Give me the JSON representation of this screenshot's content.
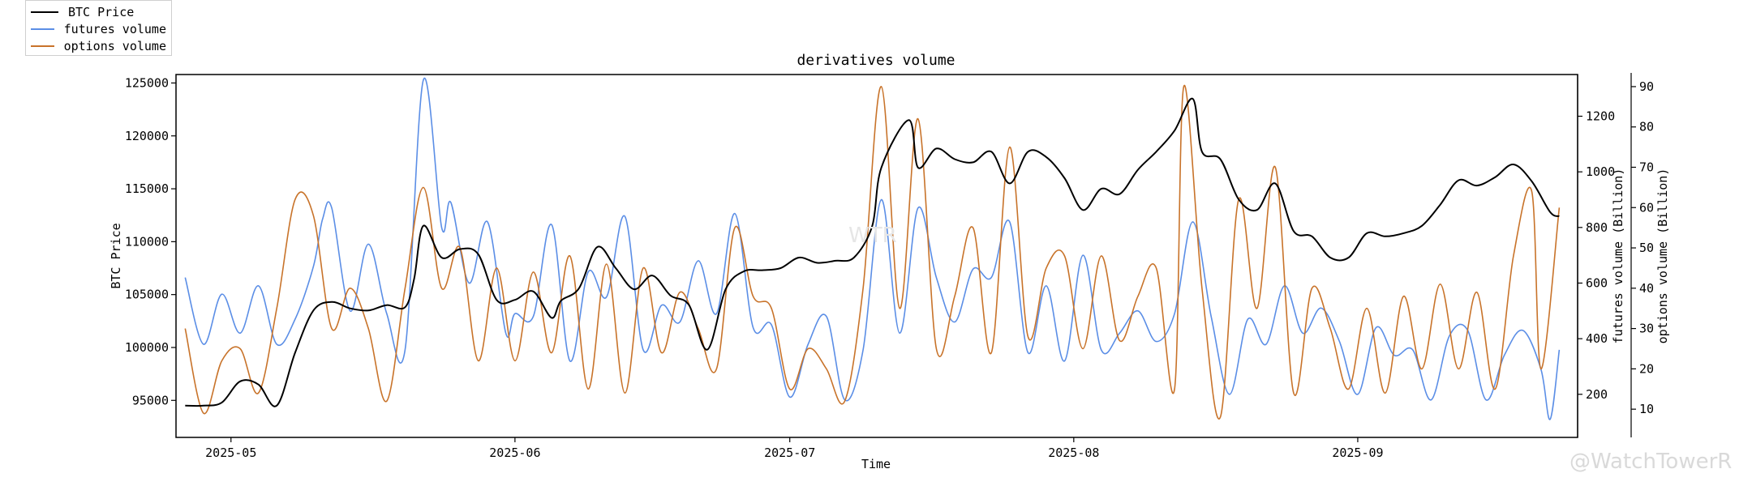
{
  "colors": {
    "btc": "#000000",
    "futures": "#5b8ee6",
    "options": "#c8732a"
  },
  "legend": {
    "items": [
      {
        "label": "BTC Price",
        "color": "#000000"
      },
      {
        "label": "futures volume",
        "color": "#5b8ee6"
      },
      {
        "label": "options volume",
        "color": "#c8732a"
      }
    ]
  },
  "watermark": {
    "text": "@WatchTowerR",
    "center_text": "WTR"
  },
  "chart_data": {
    "type": "line",
    "title": "derivatives volume",
    "xlabel": "Time",
    "ylabel_left": "BTC Price",
    "ylabel_right1": "futures volume (Billion)",
    "ylabel_right2": "options volume (Billion)",
    "x_range": [
      "2025-04-25",
      "2025-09-25"
    ],
    "ylim_left": [
      91500,
      125800
    ],
    "ylim_futures": [
      45,
      1350
    ],
    "ylim_options": [
      3,
      93
    ],
    "x_ticks": [
      "2025-05",
      "2025-06",
      "2025-07",
      "2025-08",
      "2025-09"
    ],
    "y_ticks_left": [
      "95000",
      "100000",
      "105000",
      "110000",
      "115000",
      "120000",
      "125000"
    ],
    "y_ticks_futures": [
      "200",
      "400",
      "600",
      "800",
      "1000",
      "1200"
    ],
    "y_ticks_options": [
      "10",
      "20",
      "30",
      "40",
      "50",
      "60",
      "70",
      "80",
      "90"
    ],
    "series": [
      {
        "name": "BTC Price",
        "axis": "left",
        "points": [
          [
            "2025-04-26",
            94500
          ],
          [
            "2025-04-28",
            94500
          ],
          [
            "2025-04-30",
            94800
          ],
          [
            "2025-05-02",
            96800
          ],
          [
            "2025-05-04",
            96500
          ],
          [
            "2025-05-06",
            94500
          ],
          [
            "2025-05-08",
            99500
          ],
          [
            "2025-05-10",
            103500
          ],
          [
            "2025-05-12",
            104300
          ],
          [
            "2025-05-14",
            103700
          ],
          [
            "2025-05-16",
            103500
          ],
          [
            "2025-05-18",
            104000
          ],
          [
            "2025-05-20",
            103800
          ],
          [
            "2025-05-21",
            106500
          ],
          [
            "2025-05-22",
            111500
          ],
          [
            "2025-05-24",
            108500
          ],
          [
            "2025-05-26",
            109300
          ],
          [
            "2025-05-28",
            108800
          ],
          [
            "2025-05-30",
            104500
          ],
          [
            "2025-06-01",
            104500
          ],
          [
            "2025-06-03",
            105300
          ],
          [
            "2025-06-05",
            102800
          ],
          [
            "2025-06-06",
            104400
          ],
          [
            "2025-06-08",
            105600
          ],
          [
            "2025-06-10",
            109500
          ],
          [
            "2025-06-12",
            107500
          ],
          [
            "2025-06-14",
            105500
          ],
          [
            "2025-06-16",
            106800
          ],
          [
            "2025-06-18",
            104900
          ],
          [
            "2025-06-20",
            104000
          ],
          [
            "2025-06-22",
            99800
          ],
          [
            "2025-06-24",
            105500
          ],
          [
            "2025-06-26",
            107200
          ],
          [
            "2025-06-28",
            107300
          ],
          [
            "2025-06-30",
            107500
          ],
          [
            "2025-07-02",
            108500
          ],
          [
            "2025-07-04",
            108000
          ],
          [
            "2025-07-06",
            108200
          ],
          [
            "2025-07-08",
            108500
          ],
          [
            "2025-07-10",
            111500
          ],
          [
            "2025-07-11",
            117000
          ],
          [
            "2025-07-14",
            121500
          ],
          [
            "2025-07-15",
            117000
          ],
          [
            "2025-07-17",
            118800
          ],
          [
            "2025-07-19",
            117800
          ],
          [
            "2025-07-21",
            117500
          ],
          [
            "2025-07-23",
            118500
          ],
          [
            "2025-07-25",
            115500
          ],
          [
            "2025-07-27",
            118500
          ],
          [
            "2025-07-29",
            118000
          ],
          [
            "2025-07-31",
            116000
          ],
          [
            "2025-08-02",
            113000
          ],
          [
            "2025-08-04",
            115000
          ],
          [
            "2025-08-06",
            114500
          ],
          [
            "2025-08-08",
            116800
          ],
          [
            "2025-08-10",
            118500
          ],
          [
            "2025-08-12",
            120500
          ],
          [
            "2025-08-14",
            123500
          ],
          [
            "2025-08-15",
            118500
          ],
          [
            "2025-08-17",
            117800
          ],
          [
            "2025-08-19",
            114000
          ],
          [
            "2025-08-21",
            113000
          ],
          [
            "2025-08-23",
            115500
          ],
          [
            "2025-08-25",
            111000
          ],
          [
            "2025-08-27",
            110500
          ],
          [
            "2025-08-29",
            108500
          ],
          [
            "2025-08-31",
            108500
          ],
          [
            "2025-09-02",
            110800
          ],
          [
            "2025-09-04",
            110500
          ],
          [
            "2025-09-06",
            110800
          ],
          [
            "2025-09-08",
            111500
          ],
          [
            "2025-09-10",
            113500
          ],
          [
            "2025-09-12",
            115800
          ],
          [
            "2025-09-14",
            115300
          ],
          [
            "2025-09-16",
            116100
          ],
          [
            "2025-09-18",
            117300
          ],
          [
            "2025-09-20",
            115700
          ],
          [
            "2025-09-22",
            112800
          ],
          [
            "2025-09-23",
            112400
          ]
        ]
      },
      {
        "name": "futures volume",
        "axis": "right1",
        "points": [
          [
            "2025-04-26",
            620
          ],
          [
            "2025-04-28",
            380
          ],
          [
            "2025-04-30",
            560
          ],
          [
            "2025-05-02",
            420
          ],
          [
            "2025-05-04",
            590
          ],
          [
            "2025-05-06",
            380
          ],
          [
            "2025-05-08",
            470
          ],
          [
            "2025-05-10",
            660
          ],
          [
            "2025-05-11",
            830
          ],
          [
            "2025-05-12",
            870
          ],
          [
            "2025-05-14",
            500
          ],
          [
            "2025-05-16",
            740
          ],
          [
            "2025-05-18",
            490
          ],
          [
            "2025-05-20",
            360
          ],
          [
            "2025-05-22",
            1330
          ],
          [
            "2025-05-24",
            800
          ],
          [
            "2025-05-25",
            890
          ],
          [
            "2025-05-27",
            600
          ],
          [
            "2025-05-29",
            820
          ],
          [
            "2025-05-31",
            420
          ],
          [
            "2025-06-01",
            490
          ],
          [
            "2025-06-03",
            480
          ],
          [
            "2025-06-05",
            810
          ],
          [
            "2025-06-07",
            320
          ],
          [
            "2025-06-09",
            640
          ],
          [
            "2025-06-11",
            550
          ],
          [
            "2025-06-13",
            840
          ],
          [
            "2025-06-15",
            360
          ],
          [
            "2025-06-17",
            520
          ],
          [
            "2025-06-19",
            460
          ],
          [
            "2025-06-21",
            680
          ],
          [
            "2025-06-23",
            490
          ],
          [
            "2025-06-25",
            850
          ],
          [
            "2025-06-27",
            440
          ],
          [
            "2025-06-29",
            450
          ],
          [
            "2025-07-01",
            190
          ],
          [
            "2025-07-03",
            380
          ],
          [
            "2025-07-05",
            480
          ],
          [
            "2025-07-07",
            180
          ],
          [
            "2025-07-09",
            360
          ],
          [
            "2025-07-11",
            900
          ],
          [
            "2025-07-13",
            420
          ],
          [
            "2025-07-15",
            870
          ],
          [
            "2025-07-17",
            620
          ],
          [
            "2025-07-19",
            460
          ],
          [
            "2025-07-21",
            650
          ],
          [
            "2025-07-23",
            620
          ],
          [
            "2025-07-25",
            820
          ],
          [
            "2025-07-27",
            350
          ],
          [
            "2025-07-29",
            590
          ],
          [
            "2025-07-31",
            320
          ],
          [
            "2025-08-02",
            700
          ],
          [
            "2025-08-04",
            360
          ],
          [
            "2025-08-06",
            420
          ],
          [
            "2025-08-08",
            500
          ],
          [
            "2025-08-10",
            390
          ],
          [
            "2025-08-12",
            490
          ],
          [
            "2025-08-14",
            820
          ],
          [
            "2025-08-16",
            480
          ],
          [
            "2025-08-18",
            200
          ],
          [
            "2025-08-20",
            470
          ],
          [
            "2025-08-22",
            380
          ],
          [
            "2025-08-24",
            590
          ],
          [
            "2025-08-26",
            420
          ],
          [
            "2025-08-28",
            510
          ],
          [
            "2025-08-30",
            390
          ],
          [
            "2025-09-01",
            200
          ],
          [
            "2025-09-03",
            440
          ],
          [
            "2025-09-05",
            340
          ],
          [
            "2025-09-07",
            360
          ],
          [
            "2025-09-09",
            180
          ],
          [
            "2025-09-11",
            410
          ],
          [
            "2025-09-13",
            430
          ],
          [
            "2025-09-15",
            180
          ],
          [
            "2025-09-17",
            340
          ],
          [
            "2025-09-19",
            430
          ],
          [
            "2025-09-21",
            290
          ],
          [
            "2025-09-22",
            110
          ],
          [
            "2025-09-23",
            360
          ]
        ]
      },
      {
        "name": "options volume",
        "axis": "right2",
        "points": [
          [
            "2025-04-26",
            30
          ],
          [
            "2025-04-28",
            9
          ],
          [
            "2025-04-30",
            22
          ],
          [
            "2025-05-02",
            25
          ],
          [
            "2025-05-04",
            14
          ],
          [
            "2025-05-06",
            35
          ],
          [
            "2025-05-08",
            62
          ],
          [
            "2025-05-10",
            58
          ],
          [
            "2025-05-12",
            30
          ],
          [
            "2025-05-14",
            40
          ],
          [
            "2025-05-16",
            30
          ],
          [
            "2025-05-18",
            12
          ],
          [
            "2025-05-20",
            40
          ],
          [
            "2025-05-22",
            65
          ],
          [
            "2025-05-24",
            40
          ],
          [
            "2025-05-26",
            50
          ],
          [
            "2025-05-28",
            22
          ],
          [
            "2025-05-30",
            45
          ],
          [
            "2025-06-01",
            22
          ],
          [
            "2025-06-03",
            44
          ],
          [
            "2025-06-05",
            24
          ],
          [
            "2025-06-07",
            48
          ],
          [
            "2025-06-09",
            15
          ],
          [
            "2025-06-11",
            46
          ],
          [
            "2025-06-13",
            14
          ],
          [
            "2025-06-15",
            45
          ],
          [
            "2025-06-17",
            24
          ],
          [
            "2025-06-19",
            39
          ],
          [
            "2025-06-21",
            30
          ],
          [
            "2025-06-23",
            20
          ],
          [
            "2025-06-25",
            55
          ],
          [
            "2025-06-27",
            38
          ],
          [
            "2025-06-29",
            35
          ],
          [
            "2025-07-01",
            15
          ],
          [
            "2025-07-03",
            25
          ],
          [
            "2025-07-05",
            20
          ],
          [
            "2025-07-07",
            12
          ],
          [
            "2025-07-09",
            40
          ],
          [
            "2025-07-11",
            90
          ],
          [
            "2025-07-13",
            35
          ],
          [
            "2025-07-15",
            82
          ],
          [
            "2025-07-17",
            25
          ],
          [
            "2025-07-19",
            38
          ],
          [
            "2025-07-21",
            55
          ],
          [
            "2025-07-23",
            24
          ],
          [
            "2025-07-25",
            75
          ],
          [
            "2025-07-27",
            28
          ],
          [
            "2025-07-29",
            45
          ],
          [
            "2025-07-31",
            48
          ],
          [
            "2025-08-02",
            25
          ],
          [
            "2025-08-04",
            48
          ],
          [
            "2025-08-06",
            27
          ],
          [
            "2025-08-08",
            38
          ],
          [
            "2025-08-10",
            45
          ],
          [
            "2025-08-12",
            15
          ],
          [
            "2025-08-13",
            90
          ],
          [
            "2025-08-15",
            40
          ],
          [
            "2025-08-17",
            8
          ],
          [
            "2025-08-19",
            62
          ],
          [
            "2025-08-21",
            35
          ],
          [
            "2025-08-23",
            70
          ],
          [
            "2025-08-25",
            14
          ],
          [
            "2025-08-27",
            40
          ],
          [
            "2025-08-29",
            30
          ],
          [
            "2025-08-31",
            15
          ],
          [
            "2025-09-02",
            35
          ],
          [
            "2025-09-04",
            14
          ],
          [
            "2025-09-06",
            38
          ],
          [
            "2025-09-08",
            20
          ],
          [
            "2025-09-10",
            41
          ],
          [
            "2025-09-12",
            20
          ],
          [
            "2025-09-14",
            39
          ],
          [
            "2025-09-16",
            15
          ],
          [
            "2025-09-18",
            48
          ],
          [
            "2025-09-20",
            64
          ],
          [
            "2025-09-21",
            20
          ],
          [
            "2025-09-23",
            60
          ]
        ]
      }
    ]
  }
}
